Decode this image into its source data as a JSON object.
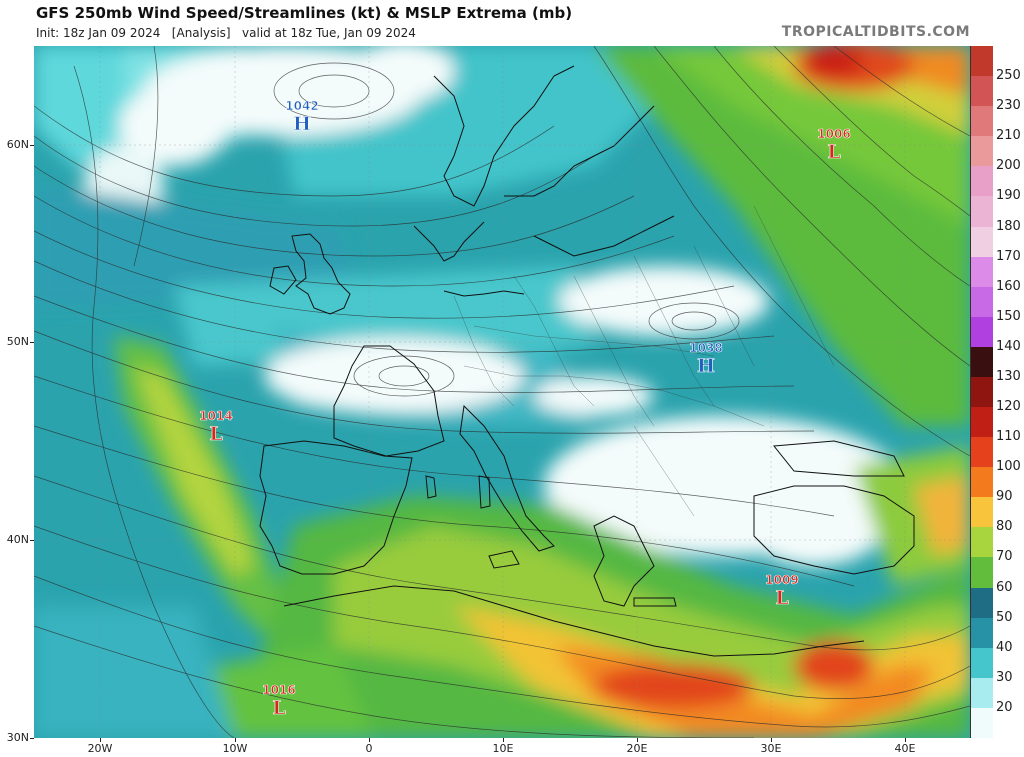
{
  "header": {
    "title": "GFS 250mb Wind Speed/Streamlines (kt) & MSLP Extrema (mb)",
    "subtitle": "Init: 18z Jan 09 2024   [Analysis]   valid at 18z Tue, Jan 09 2024",
    "credit": "TROPICALTIDBITS.COM"
  },
  "axes": {
    "lat_labels": [
      "60N",
      "50N",
      "40N",
      "30N"
    ],
    "lon_labels": [
      "20W",
      "10W",
      "0",
      "10E",
      "20E",
      "30E",
      "40E"
    ]
  },
  "colorbar": {
    "labels": [
      "250",
      "230",
      "210",
      "200",
      "190",
      "180",
      "170",
      "160",
      "150",
      "140",
      "130",
      "120",
      "110",
      "100",
      "90",
      "80",
      "70",
      "60",
      "50",
      "40",
      "30",
      "20"
    ],
    "colors": [
      "#c0392b",
      "#d35454",
      "#e07a7a",
      "#ea9a9a",
      "#e8a0c8",
      "#ebb4d4",
      "#f1cfe2",
      "#dd8be8",
      "#c86ae6",
      "#b040e0",
      "#3a0f10",
      "#8e1510",
      "#bf1f14",
      "#e4411c",
      "#f47a1e",
      "#f7c43c",
      "#a8d43e",
      "#63bd3c",
      "#1e6d84",
      "#2791a6",
      "#45c6cc",
      "#a9ecf0",
      "#f0fbfb"
    ]
  },
  "pressure_centers": [
    {
      "type": "H",
      "value": "1042",
      "color": "#1f5fbf"
    },
    {
      "type": "H",
      "value": "1038",
      "color": "#1f5fbf"
    },
    {
      "type": "L",
      "value": "1006",
      "color": "#d4271c"
    },
    {
      "type": "L",
      "value": "1014",
      "color": "#d4271c"
    },
    {
      "type": "L",
      "value": "1009",
      "color": "#d4271c"
    },
    {
      "type": "L",
      "value": "1016",
      "color": "#d4271c"
    }
  ]
}
